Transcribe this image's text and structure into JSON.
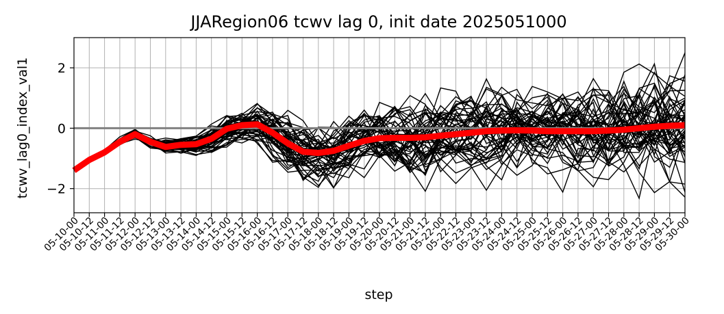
{
  "chart_data": {
    "type": "line",
    "title": "JJARegion06 tcwv lag 0, init date 2025051000",
    "xlabel": "step",
    "ylabel": "tcwv_lag0_index_val1",
    "ylim": [
      -2.8,
      3.0
    ],
    "yticks": [
      -2,
      0,
      2
    ],
    "ytick_labels": [
      "−2",
      "0",
      "2"
    ],
    "grid": true,
    "categories": [
      "05-10-00",
      "05-10-12",
      "05-11-00",
      "05-11-12",
      "05-12-00",
      "05-12-12",
      "05-13-00",
      "05-13-12",
      "05-14-00",
      "05-14-12",
      "05-15-00",
      "05-15-12",
      "05-16-00",
      "05-16-12",
      "05-17-00",
      "05-17-12",
      "05-18-00",
      "05-18-12",
      "05-19-00",
      "05-19-12",
      "05-20-00",
      "05-20-12",
      "05-21-00",
      "05-21-12",
      "05-22-00",
      "05-22-12",
      "05-23-00",
      "05-23-12",
      "05-24-00",
      "05-24-12",
      "05-25-00",
      "05-25-12",
      "05-26-00",
      "05-26-12",
      "05-27-00",
      "05-27-12",
      "05-28-00",
      "05-28-12",
      "05-29-00",
      "05-29-12",
      "05-30-00"
    ],
    "zero_line": {
      "value": 0,
      "color": "#808080"
    },
    "colors": {
      "members": "#000000",
      "mean": "#ff0000"
    },
    "mean": {
      "values": [
        -1.4,
        -1.05,
        -0.8,
        -0.45,
        -0.2,
        -0.45,
        -0.62,
        -0.55,
        -0.53,
        -0.35,
        -0.02,
        0.1,
        0.13,
        -0.15,
        -0.5,
        -0.78,
        -0.82,
        -0.75,
        -0.58,
        -0.42,
        -0.33,
        -0.32,
        -0.32,
        -0.3,
        -0.25,
        -0.2,
        -0.15,
        -0.1,
        -0.08,
        -0.07,
        -0.08,
        -0.1,
        -0.1,
        -0.1,
        -0.1,
        -0.08,
        -0.05,
        0.0,
        0.05,
        0.08,
        0.1
      ]
    },
    "ensemble": {
      "members": 50,
      "spread": [
        0.0,
        0.02,
        0.05,
        0.08,
        0.1,
        0.15,
        0.18,
        0.2,
        0.25,
        0.3,
        0.35,
        0.4,
        0.45,
        0.55,
        0.65,
        0.65,
        0.65,
        0.7,
        0.75,
        0.78,
        0.8,
        0.82,
        0.84,
        0.86,
        0.88,
        0.9,
        0.92,
        0.94,
        0.96,
        0.98,
        1.0,
        1.02,
        1.04,
        1.06,
        1.08,
        1.1,
        1.12,
        1.14,
        1.16,
        1.18,
        1.2
      ]
    }
  }
}
